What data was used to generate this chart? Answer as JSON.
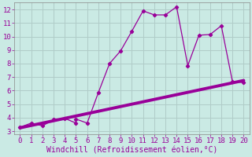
{
  "xlabel": "Windchill (Refroidissement éolien,°C)",
  "background_color": "#caeae4",
  "grid_color": "#b0ccc8",
  "line_color": "#990099",
  "xlim": [
    -0.5,
    20.5
  ],
  "ylim": [
    2.8,
    12.5
  ],
  "xticks": [
    0,
    1,
    2,
    3,
    4,
    5,
    6,
    7,
    8,
    9,
    10,
    11,
    12,
    13,
    14,
    15,
    16,
    17,
    18,
    19,
    20
  ],
  "yticks": [
    3,
    4,
    5,
    6,
    7,
    8,
    9,
    10,
    11,
    12
  ],
  "scatter_x": [
    0,
    1,
    2,
    3,
    4,
    5,
    5,
    6,
    7,
    8,
    9,
    10,
    11,
    12,
    13,
    14,
    15,
    16,
    17,
    18,
    19,
    20
  ],
  "scatter_y": [
    3.3,
    3.6,
    3.4,
    3.85,
    3.95,
    3.6,
    3.9,
    3.6,
    5.85,
    8.0,
    8.95,
    10.4,
    11.9,
    11.6,
    11.6,
    12.2,
    7.85,
    10.1,
    10.15,
    10.8,
    6.65,
    6.6
  ],
  "trend_x": [
    0,
    20
  ],
  "trend_y": [
    3.25,
    6.75
  ],
  "font_color": "#990099",
  "tick_fontsize": 6.5,
  "xlabel_fontsize": 7.0
}
